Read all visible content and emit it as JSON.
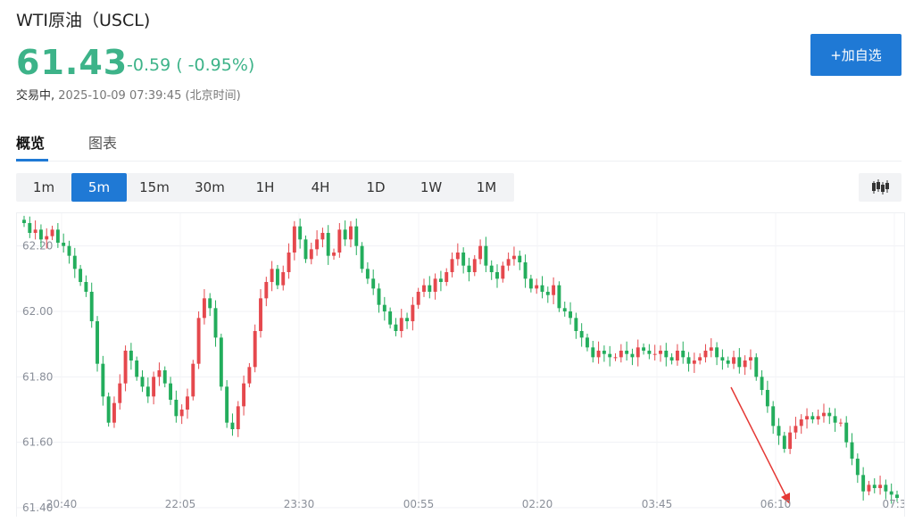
{
  "header": {
    "title": "WTI原油（USCL)",
    "price": "61.43",
    "change": "-0.59 ( -0.95%)",
    "status_label": "交易中,",
    "timestamp": "2025-10-09 07:39:45",
    "timezone": "(北京时间)",
    "add_button": "+加自选",
    "price_color": "#3db389",
    "change_color": "#3db389"
  },
  "tabs": [
    {
      "label": "概览",
      "active": true
    },
    {
      "label": "图表",
      "active": false
    }
  ],
  "intervals": [
    "1m",
    "5m",
    "15m",
    "30m",
    "1H",
    "4H",
    "1D",
    "1W",
    "1M"
  ],
  "active_interval": "5m",
  "chart_type_icon": "candlestick-icon",
  "colors": {
    "up": "#e5484d",
    "down": "#23ad5c",
    "accent": "#1f79d5",
    "annotation": "#e53935"
  },
  "chart_data": {
    "type": "candlestick",
    "ylim": [
      61.4,
      62.3
    ],
    "y_ticks": [
      "62.20",
      "62.00",
      "61.80",
      "61.60",
      "61.40"
    ],
    "x_ticks": [
      "20:40",
      "22:05",
      "23:30",
      "00:55",
      "02:20",
      "03:45",
      "06:10",
      "07:3"
    ],
    "interval": "5m",
    "closes": [
      62.27,
      62.24,
      62.25,
      62.22,
      62.23,
      62.25,
      62.21,
      62.2,
      62.17,
      62.13,
      62.09,
      62.06,
      61.97,
      61.84,
      61.74,
      61.66,
      61.72,
      61.78,
      61.88,
      61.85,
      61.8,
      61.77,
      61.74,
      61.8,
      61.82,
      61.78,
      61.73,
      61.68,
      61.7,
      61.74,
      61.84,
      61.98,
      62.04,
      62.01,
      61.92,
      61.77,
      61.66,
      61.64,
      61.71,
      61.78,
      61.83,
      61.94,
      62.04,
      62.09,
      62.13,
      62.08,
      62.12,
      62.18,
      62.26,
      62.22,
      62.16,
      62.19,
      62.22,
      62.24,
      62.17,
      62.18,
      62.25,
      62.22,
      62.26,
      62.2,
      62.13,
      62.1,
      62.07,
      62.02,
      62.0,
      61.96,
      61.94,
      61.98,
      61.97,
      62.02,
      62.06,
      62.08,
      62.06,
      62.1,
      62.09,
      62.12,
      62.16,
      62.18,
      62.14,
      62.12,
      62.16,
      62.2,
      62.14,
      62.12,
      62.1,
      62.14,
      62.16,
      62.17,
      62.15,
      62.1,
      62.07,
      62.08,
      62.06,
      62.05,
      62.08,
      62.01,
      62.0,
      61.98,
      61.94,
      61.92,
      61.89,
      61.86,
      61.88,
      61.87,
      61.86,
      61.86,
      61.88,
      61.87,
      61.86,
      61.89,
      61.88,
      61.87,
      61.87,
      61.88,
      61.86,
      61.85,
      61.88,
      61.86,
      61.84,
      61.85,
      61.86,
      61.88,
      61.89,
      61.86,
      61.85,
      61.84,
      61.86,
      61.83,
      61.85,
      61.86,
      61.8,
      61.76,
      61.71,
      61.65,
      61.62,
      61.58,
      61.63,
      61.65,
      61.67,
      61.68,
      61.67,
      61.68,
      61.69,
      61.68,
      61.66,
      61.66,
      61.6,
      61.55,
      61.5,
      61.45,
      61.47,
      61.46,
      61.47,
      61.45,
      61.44,
      61.43
    ]
  }
}
